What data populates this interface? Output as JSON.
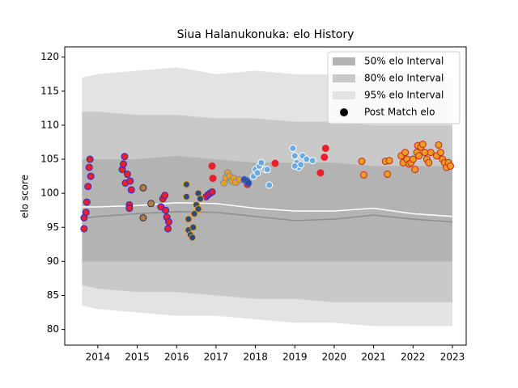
{
  "chart_data": {
    "type": "scatter",
    "title": "Siua Halanukonuka: elo History",
    "ylabel": "elo score",
    "xlim": [
      2013.16,
      2023.35
    ],
    "ylim": [
      77.7,
      121.5
    ],
    "xticks": [
      2014,
      2015,
      2016,
      2017,
      2018,
      2019,
      2020,
      2021,
      2022,
      2023
    ],
    "yticks": [
      80,
      85,
      90,
      95,
      100,
      105,
      110,
      115,
      120
    ],
    "legend": "upper right",
    "x": [
      2013.6,
      2014,
      2015,
      2016,
      2017,
      2018,
      2019,
      2020,
      2021,
      2022,
      2023
    ],
    "bands": [
      {
        "name": "50% elo Interval",
        "color": "#b3b3b3",
        "upper": [
          105,
          105,
          105,
          105.5,
          105,
          104.5,
          104.5,
          104.5,
          104,
          104,
          104
        ],
        "lower": [
          90,
          90,
          90,
          90,
          90,
          90,
          90,
          90,
          90,
          90,
          90
        ]
      },
      {
        "name": "80% elo Interval",
        "color": "#c9c9c9",
        "upper": [
          112,
          112,
          111.5,
          111.5,
          111,
          111,
          110.5,
          110.5,
          110,
          110,
          110
        ],
        "lower": [
          86.5,
          86,
          85.5,
          85.5,
          85,
          84.5,
          84.5,
          84,
          84,
          84,
          84
        ]
      },
      {
        "name": "95% elo Interval",
        "color": "#e3e3e3",
        "upper": [
          117,
          117.5,
          118,
          118.5,
          117.5,
          118,
          117.5,
          117.5,
          117,
          117,
          117
        ],
        "lower": [
          83.5,
          83,
          82.5,
          82,
          82,
          81.5,
          81,
          81,
          80.5,
          80.5,
          80.5
        ]
      }
    ],
    "lines": [
      {
        "color": "#ffffff",
        "values": [
          98,
          98,
          98.2,
          98.6,
          98.5,
          97.8,
          97.4,
          97.4,
          97.8,
          97,
          96.6
        ]
      },
      {
        "color": "#8c8c8c",
        "values": [
          96.3,
          96.6,
          97,
          97.3,
          97.2,
          96.6,
          96,
          96.2,
          96.8,
          96.2,
          95.8
        ]
      }
    ],
    "marker_legend": {
      "name": "Post Match elo",
      "color": "#000000"
    },
    "scatter": [
      {
        "fill": "#e8202a",
        "edge": "#2a2ad0",
        "x": [
          2013.65,
          2013.65,
          2013.7,
          2013.72,
          2013.75,
          2013.78,
          2013.8,
          2013.82,
          2014.62,
          2014.65,
          2014.68,
          2014.7,
          2014.75,
          2014.8,
          2014.8,
          2014.82,
          2014.85,
          2015.6,
          2015.65,
          2015.7,
          2015.72,
          2015.75,
          2015.78,
          2015.8,
          2016.75,
          2016.8,
          2016.85,
          2016.9
        ],
        "y": [
          94.8,
          96.4,
          97.2,
          98.7,
          101,
          103.8,
          105,
          102.5,
          103.5,
          104.3,
          105.4,
          101.5,
          102.8,
          98.3,
          97.8,
          101.8,
          100.5,
          98,
          99.2,
          99.7,
          97.5,
          96.5,
          94.8,
          95.8,
          99.5,
          99.8,
          100,
          100.2
        ]
      },
      {
        "fill": "#e8202a",
        "edge": "#e8202a",
        "x": [
          2016.9,
          2016.92,
          2017.8,
          2018.5,
          2019.65,
          2019.75,
          2019.78
        ],
        "y": [
          104,
          102.2,
          101.3,
          104.4,
          103,
          105.3,
          106.6
        ]
      },
      {
        "fill": "#b07a4a",
        "edge": "#333333",
        "x": [
          2015.15,
          2015.15,
          2015.35
        ],
        "y": [
          100.8,
          96.4,
          98.5
        ]
      },
      {
        "fill": "#2d4a7a",
        "edge": "#e8a020",
        "x": [
          2016.25,
          2016.25,
          2016.3,
          2016.3,
          2016.35,
          2016.4,
          2016.42,
          2016.45,
          2016.5,
          2016.55,
          2016.6,
          2016.55
        ],
        "y": [
          101.3,
          99.5,
          96.2,
          94.6,
          93.9,
          93.5,
          95,
          97,
          98.3,
          100,
          99.2,
          97.7
        ]
      },
      {
        "fill": "#e8a020",
        "edge": "#7a8aa0",
        "x": [
          2017.2,
          2017.25,
          2017.3,
          2017.35,
          2017.4,
          2017.45,
          2017.5,
          2017.6
        ],
        "y": [
          101.5,
          102.3,
          103,
          102.5,
          101.8,
          102.2,
          101.6,
          102
        ]
      },
      {
        "fill": "#2d4a9a",
        "edge": "#3a6ad0",
        "x": [
          2017.72,
          2017.78,
          2017.82
        ],
        "y": [
          102,
          101.8,
          101.5
        ]
      },
      {
        "fill": "#6aaae0",
        "edge": "#ffffff",
        "x": [
          2017.95,
          2018.0,
          2018.05,
          2018.1,
          2018.15,
          2018.25,
          2018.3,
          2018.35,
          2018.95,
          2019.0,
          2019.05,
          2019.1,
          2019.15,
          2019.2,
          2019.3,
          2019.45,
          2019.0
        ],
        "y": [
          102.5,
          103.5,
          103,
          104,
          104.5,
          103.5,
          103.5,
          101.2,
          106.6,
          105.5,
          104.5,
          103.8,
          104.2,
          105.5,
          105,
          104.8,
          104
        ]
      },
      {
        "fill": "#e8a020",
        "edge": "#d02020",
        "x": [
          2020.7,
          2020.75,
          2021.3,
          2021.35,
          2021.4,
          2021.7,
          2021.75,
          2021.8,
          2021.85,
          2021.9,
          2021.95,
          2022.0,
          2022.05,
          2022.1,
          2022.12,
          2022.15,
          2022.2,
          2022.25,
          2022.3,
          2022.35,
          2022.4,
          2022.45,
          2022.6,
          2022.65,
          2022.7,
          2022.75,
          2022.8,
          2022.85,
          2022.9,
          2022.95
        ],
        "y": [
          104.7,
          102.7,
          104.7,
          102.8,
          104.8,
          105.5,
          104.5,
          106,
          105,
          104.3,
          104.5,
          105,
          103.5,
          106,
          107,
          105.5,
          106.8,
          107.2,
          106,
          105,
          104.5,
          106,
          105.5,
          107.1,
          106,
          105,
          104.5,
          103.8,
          104.5,
          104
        ]
      }
    ]
  }
}
